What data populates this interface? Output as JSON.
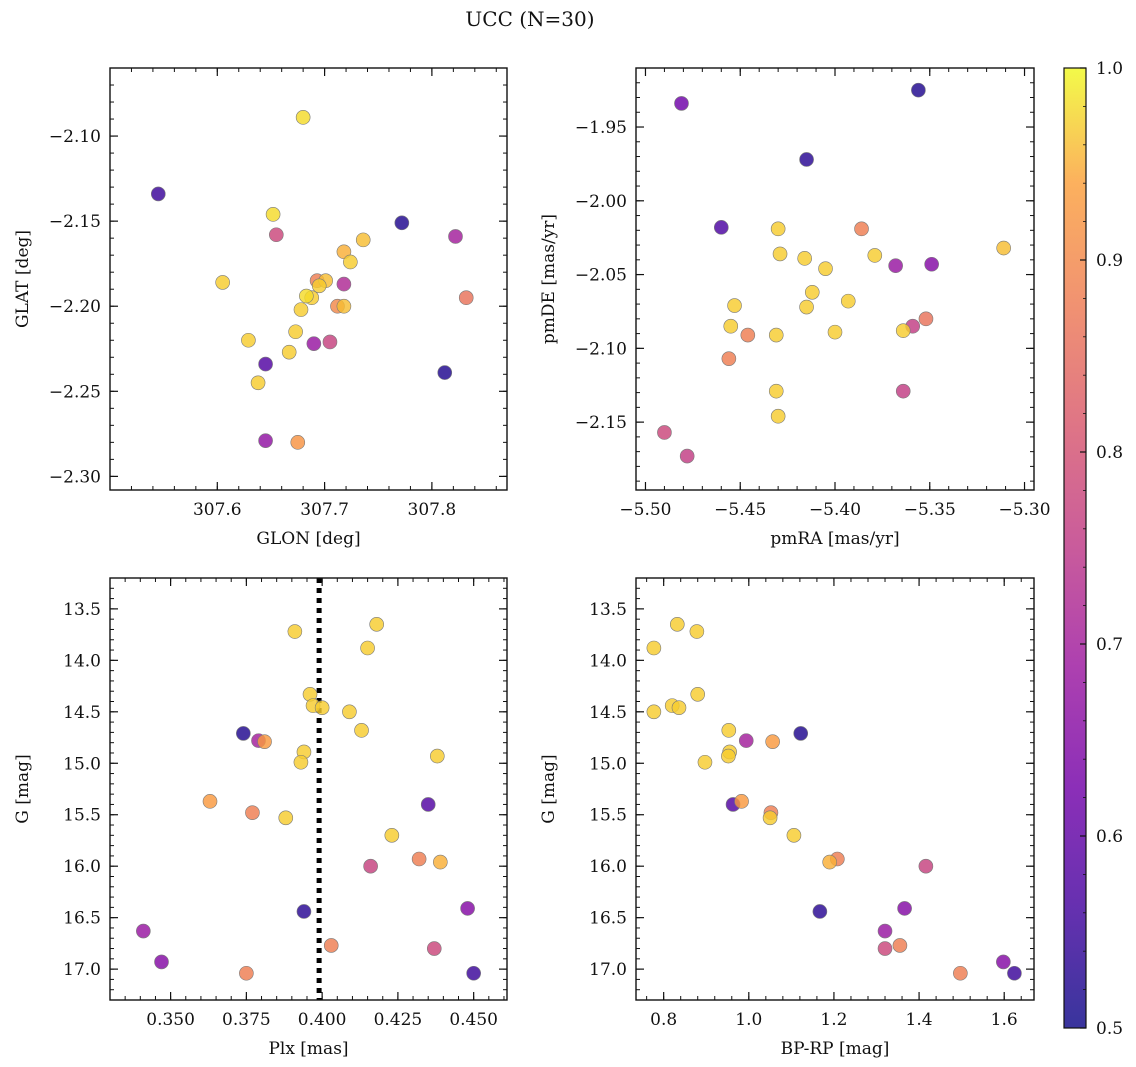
{
  "figure": {
    "title": "UCC (N=30)",
    "colormap": "plasma",
    "colorbar": {
      "min": 0.5,
      "max": 1.0,
      "ticks": [
        "0.5",
        "0.6",
        "0.7",
        "0.8",
        "0.9",
        "1.0"
      ]
    }
  },
  "chart_data": [
    {
      "type": "scatter",
      "xlabel": "GLON [deg]",
      "ylabel": "GLAT [deg]",
      "xlim": [
        307.5,
        307.87
      ],
      "ylim": [
        -2.308,
        -2.06
      ],
      "invert_y": false,
      "xticks": [
        307.6,
        307.7,
        307.8
      ],
      "xtick_labels": [
        "307.6",
        "307.7",
        "307.8"
      ],
      "yticks": [
        -2.1,
        -2.15,
        -2.2,
        -2.25,
        -2.3
      ],
      "ytick_labels": [
        "−2.10",
        "−2.15",
        "−2.20",
        "−2.25",
        "−2.30"
      ],
      "grid": false,
      "points": [
        {
          "x": 307.68,
          "y": -2.089,
          "c": 0.98
        },
        {
          "x": 307.545,
          "y": -2.134,
          "c": 0.55
        },
        {
          "x": 307.652,
          "y": -2.146,
          "c": 0.98
        },
        {
          "x": 307.655,
          "y": -2.158,
          "c": 0.78
        },
        {
          "x": 307.772,
          "y": -2.151,
          "c": 0.52
        },
        {
          "x": 307.822,
          "y": -2.159,
          "c": 0.7
        },
        {
          "x": 307.736,
          "y": -2.161,
          "c": 0.96
        },
        {
          "x": 307.718,
          "y": -2.168,
          "c": 0.95
        },
        {
          "x": 307.724,
          "y": -2.174,
          "c": 0.97
        },
        {
          "x": 307.605,
          "y": -2.186,
          "c": 0.97
        },
        {
          "x": 307.693,
          "y": -2.185,
          "c": 0.88
        },
        {
          "x": 307.695,
          "y": -2.188,
          "c": 0.97
        },
        {
          "x": 307.701,
          "y": -2.185,
          "c": 0.96
        },
        {
          "x": 307.718,
          "y": -2.187,
          "c": 0.72
        },
        {
          "x": 307.832,
          "y": -2.195,
          "c": 0.86
        },
        {
          "x": 307.683,
          "y": -2.194,
          "c": 0.98
        },
        {
          "x": 307.688,
          "y": -2.195,
          "c": 0.97
        },
        {
          "x": 307.712,
          "y": -2.2,
          "c": 0.9
        },
        {
          "x": 307.718,
          "y": -2.2,
          "c": 0.96
        },
        {
          "x": 307.678,
          "y": -2.202,
          "c": 0.97
        },
        {
          "x": 307.673,
          "y": -2.215,
          "c": 0.97
        },
        {
          "x": 307.629,
          "y": -2.22,
          "c": 0.97
        },
        {
          "x": 307.69,
          "y": -2.222,
          "c": 0.68
        },
        {
          "x": 307.705,
          "y": -2.221,
          "c": 0.77
        },
        {
          "x": 307.667,
          "y": -2.227,
          "c": 0.97
        },
        {
          "x": 307.645,
          "y": -2.234,
          "c": 0.58
        },
        {
          "x": 307.812,
          "y": -2.239,
          "c": 0.52
        },
        {
          "x": 307.638,
          "y": -2.245,
          "c": 0.97
        },
        {
          "x": 307.645,
          "y": -2.279,
          "c": 0.67
        },
        {
          "x": 307.675,
          "y": -2.28,
          "c": 0.92
        }
      ]
    },
    {
      "type": "scatter",
      "xlabel": "pmRA [mas/yr]",
      "ylabel": "pmDE [mas/yr]",
      "xlim": [
        -5.505,
        -5.295
      ],
      "ylim": [
        -2.196,
        -1.91
      ],
      "invert_y": false,
      "xticks": [
        -5.5,
        -5.45,
        -5.4,
        -5.35,
        -5.3
      ],
      "xtick_labels": [
        "−5.50",
        "−5.45",
        "−5.40",
        "−5.35",
        "−5.30"
      ],
      "yticks": [
        -1.95,
        -2.0,
        -2.05,
        -2.1,
        -2.15
      ],
      "ytick_labels": [
        "−1.95",
        "−2.00",
        "−2.05",
        "−2.10",
        "−2.15"
      ],
      "grid": false,
      "points": [
        {
          "x": -5.356,
          "y": -1.925,
          "c": 0.52
        },
        {
          "x": -5.481,
          "y": -1.934,
          "c": 0.62
        },
        {
          "x": -5.415,
          "y": -1.972,
          "c": 0.53
        },
        {
          "x": -5.46,
          "y": -2.018,
          "c": 0.57
        },
        {
          "x": -5.43,
          "y": -2.019,
          "c": 0.97
        },
        {
          "x": -5.386,
          "y": -2.019,
          "c": 0.88
        },
        {
          "x": -5.311,
          "y": -2.032,
          "c": 0.96
        },
        {
          "x": -5.429,
          "y": -2.036,
          "c": 0.97
        },
        {
          "x": -5.379,
          "y": -2.037,
          "c": 0.97
        },
        {
          "x": -5.416,
          "y": -2.039,
          "c": 0.97
        },
        {
          "x": -5.368,
          "y": -2.044,
          "c": 0.68
        },
        {
          "x": -5.349,
          "y": -2.043,
          "c": 0.65
        },
        {
          "x": -5.405,
          "y": -2.046,
          "c": 0.97
        },
        {
          "x": -5.412,
          "y": -2.062,
          "c": 0.97
        },
        {
          "x": -5.393,
          "y": -2.068,
          "c": 0.97
        },
        {
          "x": -5.453,
          "y": -2.071,
          "c": 0.97
        },
        {
          "x": -5.415,
          "y": -2.072,
          "c": 0.97
        },
        {
          "x": -5.352,
          "y": -2.08,
          "c": 0.86
        },
        {
          "x": -5.359,
          "y": -2.085,
          "c": 0.76
        },
        {
          "x": -5.455,
          "y": -2.085,
          "c": 0.97
        },
        {
          "x": -5.364,
          "y": -2.088,
          "c": 0.97
        },
        {
          "x": -5.4,
          "y": -2.089,
          "c": 0.97
        },
        {
          "x": -5.431,
          "y": -2.091,
          "c": 0.97
        },
        {
          "x": -5.446,
          "y": -2.091,
          "c": 0.88
        },
        {
          "x": -5.456,
          "y": -2.107,
          "c": 0.88
        },
        {
          "x": -5.431,
          "y": -2.129,
          "c": 0.97
        },
        {
          "x": -5.364,
          "y": -2.129,
          "c": 0.76
        },
        {
          "x": -5.43,
          "y": -2.146,
          "c": 0.97
        },
        {
          "x": -5.49,
          "y": -2.157,
          "c": 0.78
        },
        {
          "x": -5.478,
          "y": -2.173,
          "c": 0.76
        }
      ]
    },
    {
      "type": "scatter",
      "xlabel": "Plx [mas]",
      "ylabel": "G [mag]",
      "xlim": [
        0.33,
        0.461
      ],
      "ylim": [
        13.2,
        17.3
      ],
      "invert_y": true,
      "xticks": [
        0.35,
        0.375,
        0.4,
        0.425,
        0.45
      ],
      "xtick_labels": [
        "0.350",
        "0.375",
        "0.400",
        "0.425",
        "0.450"
      ],
      "yticks": [
        13.5,
        14.0,
        14.5,
        15.0,
        15.5,
        16.0,
        16.5,
        17.0
      ],
      "ytick_labels": [
        "13.5",
        "14.0",
        "14.5",
        "15.0",
        "15.5",
        "16.0",
        "16.5",
        "17.0"
      ],
      "grid": false,
      "reference_line": {
        "x": 0.399,
        "style": "dotted",
        "color": "#000000"
      },
      "points": [
        {
          "x": 0.418,
          "y": 13.65,
          "c": 0.97
        },
        {
          "x": 0.391,
          "y": 13.72,
          "c": 0.97
        },
        {
          "x": 0.415,
          "y": 13.88,
          "c": 0.97
        },
        {
          "x": 0.396,
          "y": 14.33,
          "c": 0.97
        },
        {
          "x": 0.397,
          "y": 14.44,
          "c": 0.97
        },
        {
          "x": 0.4,
          "y": 14.46,
          "c": 0.97
        },
        {
          "x": 0.409,
          "y": 14.5,
          "c": 0.97
        },
        {
          "x": 0.413,
          "y": 14.68,
          "c": 0.97
        },
        {
          "x": 0.374,
          "y": 14.71,
          "c": 0.52
        },
        {
          "x": 0.379,
          "y": 14.78,
          "c": 0.7
        },
        {
          "x": 0.381,
          "y": 14.79,
          "c": 0.93
        },
        {
          "x": 0.394,
          "y": 14.89,
          "c": 0.97
        },
        {
          "x": 0.438,
          "y": 14.93,
          "c": 0.97
        },
        {
          "x": 0.393,
          "y": 14.99,
          "c": 0.97
        },
        {
          "x": 0.363,
          "y": 15.37,
          "c": 0.93
        },
        {
          "x": 0.435,
          "y": 15.4,
          "c": 0.58
        },
        {
          "x": 0.377,
          "y": 15.48,
          "c": 0.88
        },
        {
          "x": 0.388,
          "y": 15.53,
          "c": 0.97
        },
        {
          "x": 0.423,
          "y": 15.7,
          "c": 0.97
        },
        {
          "x": 0.432,
          "y": 15.93,
          "c": 0.88
        },
        {
          "x": 0.439,
          "y": 15.96,
          "c": 0.95
        },
        {
          "x": 0.416,
          "y": 16.0,
          "c": 0.77
        },
        {
          "x": 0.448,
          "y": 16.41,
          "c": 0.65
        },
        {
          "x": 0.394,
          "y": 16.44,
          "c": 0.53
        },
        {
          "x": 0.341,
          "y": 16.63,
          "c": 0.68
        },
        {
          "x": 0.403,
          "y": 16.77,
          "c": 0.88
        },
        {
          "x": 0.437,
          "y": 16.8,
          "c": 0.78
        },
        {
          "x": 0.347,
          "y": 16.93,
          "c": 0.65
        },
        {
          "x": 0.375,
          "y": 17.04,
          "c": 0.88
        },
        {
          "x": 0.45,
          "y": 17.04,
          "c": 0.55
        }
      ]
    },
    {
      "type": "scatter",
      "xlabel": "BP-RP [mag]",
      "ylabel": "G [mag]",
      "xlim": [
        0.735,
        1.67
      ],
      "ylim": [
        13.2,
        17.3
      ],
      "invert_y": true,
      "xticks": [
        0.8,
        1.0,
        1.2,
        1.4,
        1.6
      ],
      "xtick_labels": [
        "0.8",
        "1.0",
        "1.2",
        "1.4",
        "1.6"
      ],
      "yticks": [
        13.5,
        14.0,
        14.5,
        15.0,
        15.5,
        16.0,
        16.5,
        17.0
      ],
      "ytick_labels": [
        "13.5",
        "14.0",
        "14.5",
        "15.0",
        "15.5",
        "16.0",
        "16.5",
        "17.0"
      ],
      "grid": false,
      "points": [
        {
          "x": 0.832,
          "y": 13.65,
          "c": 0.97
        },
        {
          "x": 0.878,
          "y": 13.72,
          "c": 0.97
        },
        {
          "x": 0.777,
          "y": 13.88,
          "c": 0.97
        },
        {
          "x": 0.88,
          "y": 14.33,
          "c": 0.97
        },
        {
          "x": 0.82,
          "y": 14.44,
          "c": 0.97
        },
        {
          "x": 0.836,
          "y": 14.46,
          "c": 0.97
        },
        {
          "x": 0.777,
          "y": 14.5,
          "c": 0.97
        },
        {
          "x": 0.953,
          "y": 14.68,
          "c": 0.97
        },
        {
          "x": 1.122,
          "y": 14.71,
          "c": 0.52
        },
        {
          "x": 0.994,
          "y": 14.78,
          "c": 0.7
        },
        {
          "x": 1.056,
          "y": 14.79,
          "c": 0.93
        },
        {
          "x": 0.955,
          "y": 14.89,
          "c": 0.97
        },
        {
          "x": 0.952,
          "y": 14.93,
          "c": 0.97
        },
        {
          "x": 0.897,
          "y": 14.99,
          "c": 0.97
        },
        {
          "x": 0.983,
          "y": 15.37,
          "c": 0.93
        },
        {
          "x": 0.963,
          "y": 15.4,
          "c": 0.58
        },
        {
          "x": 1.052,
          "y": 15.48,
          "c": 0.88
        },
        {
          "x": 1.05,
          "y": 15.53,
          "c": 0.97
        },
        {
          "x": 1.106,
          "y": 15.7,
          "c": 0.97
        },
        {
          "x": 1.208,
          "y": 15.93,
          "c": 0.88
        },
        {
          "x": 1.19,
          "y": 15.96,
          "c": 0.95
        },
        {
          "x": 1.416,
          "y": 16.0,
          "c": 0.77
        },
        {
          "x": 1.366,
          "y": 16.41,
          "c": 0.65
        },
        {
          "x": 1.167,
          "y": 16.44,
          "c": 0.53
        },
        {
          "x": 1.32,
          "y": 16.63,
          "c": 0.68
        },
        {
          "x": 1.355,
          "y": 16.77,
          "c": 0.88
        },
        {
          "x": 1.32,
          "y": 16.8,
          "c": 0.78
        },
        {
          "x": 1.598,
          "y": 16.93,
          "c": 0.65
        },
        {
          "x": 1.497,
          "y": 17.04,
          "c": 0.88
        },
        {
          "x": 1.624,
          "y": 17.04,
          "c": 0.55
        }
      ]
    }
  ]
}
